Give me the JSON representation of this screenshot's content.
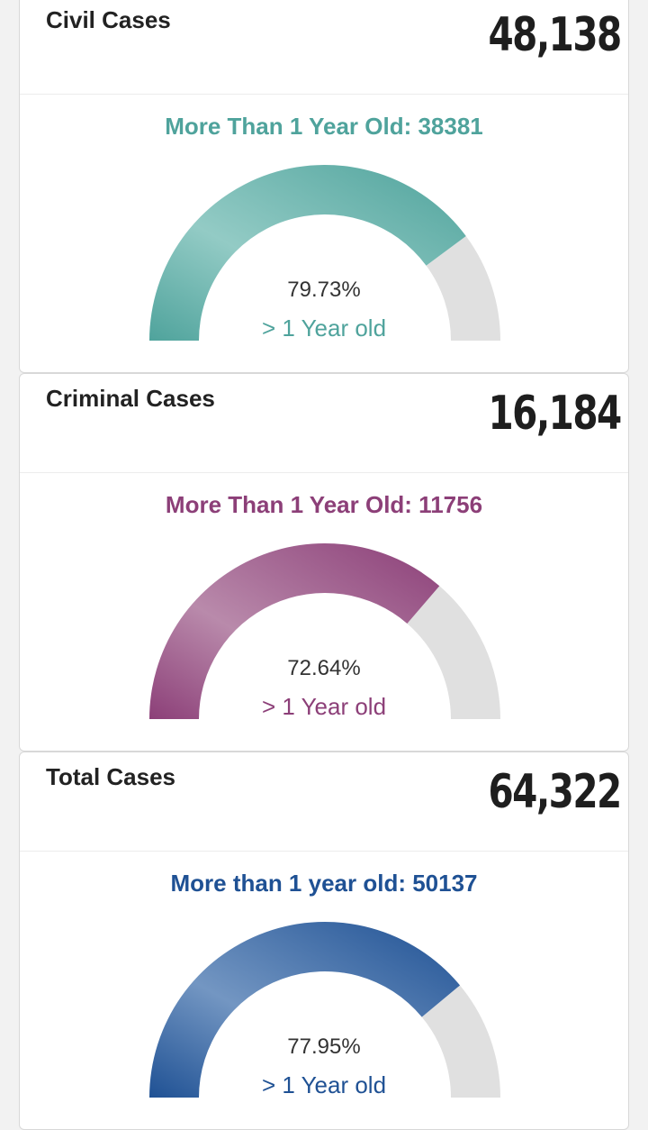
{
  "cards": [
    {
      "title": "Civil Cases",
      "value": "48,138",
      "subtitle": "More Than 1 Year Old: 38381",
      "percent_text": "79.73%",
      "percent_label": "> 1 Year old",
      "fraction": 0.7973,
      "color": "#4fa39c",
      "color_light": "#93cbc5"
    },
    {
      "title": "Criminal Cases",
      "value": "16,184",
      "subtitle": "More Than 1 Year Old: 11756",
      "percent_text": "72.64%",
      "percent_label": "> 1 Year old",
      "fraction": 0.7264,
      "color": "#8c3f78",
      "color_light": "#b98aab"
    },
    {
      "title": "Total Cases",
      "value": "64,322",
      "subtitle": "More than 1 year old: 50137",
      "percent_text": "77.95%",
      "percent_label": "> 1 Year old",
      "fraction": 0.7795,
      "color": "#1f5194",
      "color_light": "#7396c2"
    }
  ],
  "track_color": "#e0e0e0"
}
